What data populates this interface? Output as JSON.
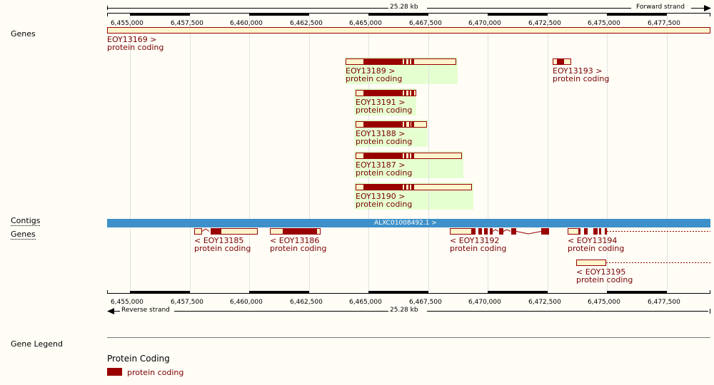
{
  "scale": {
    "length_label": "25.28 kb",
    "forward_strand": "Forward strand",
    "reverse_strand": "Reverse strand",
    "ticks": [
      "6,455,000",
      "6,457,500",
      "6,460,000",
      "6,462,500",
      "6,465,000",
      "6,467,500",
      "6,470,000",
      "6,472,500",
      "6,475,000",
      "6,477,500"
    ]
  },
  "tracks": {
    "genes_forward": "Genes",
    "contigs": "Contigs",
    "genes_reverse": "Genes",
    "gene_legend": "Gene Legend"
  },
  "contig": {
    "label": "ALXC01008492.1 >",
    "color": "#3d90c9"
  },
  "forward_genes": [
    {
      "name": "EOY13169 >",
      "biotype": "protein coding"
    },
    {
      "name": "EOY13189 >",
      "biotype": "protein coding"
    },
    {
      "name": "EOY13193 >",
      "biotype": "protein coding"
    },
    {
      "name": "EOY13191 >",
      "biotype": "protein coding"
    },
    {
      "name": "EOY13188 >",
      "biotype": "protein coding"
    },
    {
      "name": "EOY13187 >",
      "biotype": "protein coding"
    },
    {
      "name": "EOY13190 >",
      "biotype": "protein coding"
    }
  ],
  "reverse_genes": [
    {
      "name": "< EOY13185",
      "biotype": "protein coding"
    },
    {
      "name": "< EOY13186",
      "biotype": "protein coding"
    },
    {
      "name": "< EOY13192",
      "biotype": "protein coding"
    },
    {
      "name": "< EOY13194",
      "biotype": "protein coding"
    },
    {
      "name": "< EOY13195",
      "biotype": "protein coding"
    }
  ],
  "legend": {
    "heading": "Protein Coding",
    "item": "protein coding",
    "color": "#990000"
  },
  "colors": {
    "exon": "#990000",
    "utr_fill": "#fff5cc",
    "highlight": "#e6ffd1",
    "contig": "#3d90c9"
  }
}
